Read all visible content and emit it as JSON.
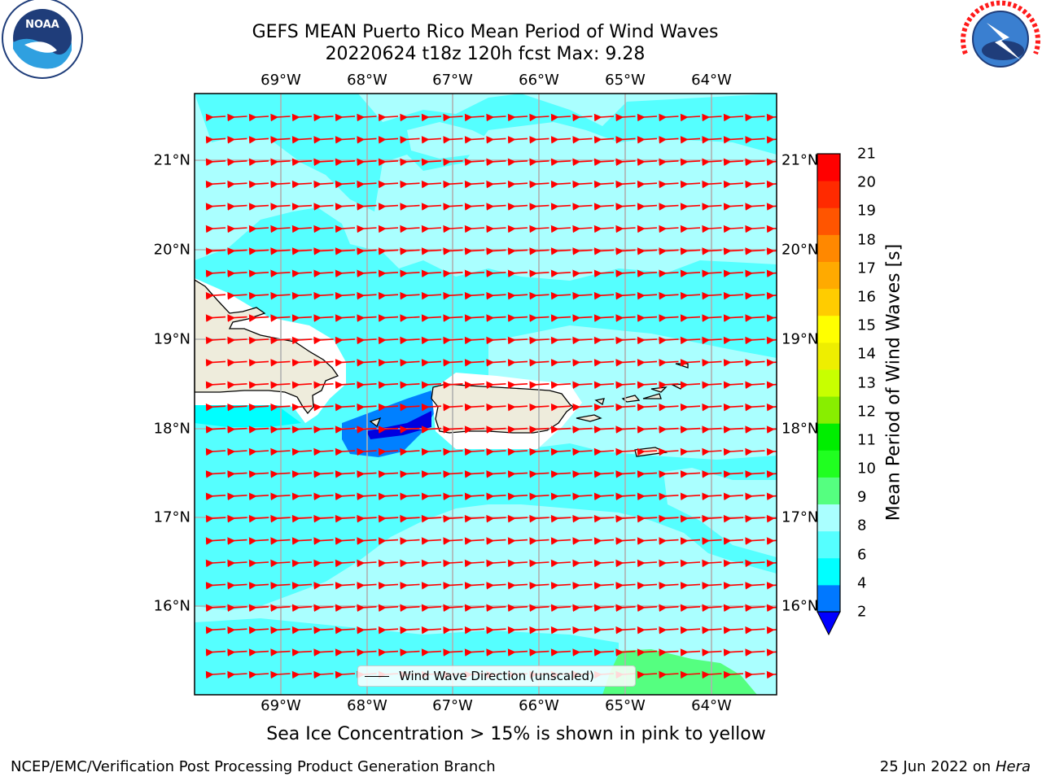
{
  "header": {
    "title_line1": "GEFS MEAN Puerto Rico Mean Period of Wind Waves",
    "title_line2": "20220624 t18z 120h fcst   Max: 9.28"
  },
  "logos": {
    "left": "noaa-logo",
    "right": "nws-logo"
  },
  "map": {
    "lon_labels": [
      "69°W",
      "68°W",
      "67°W",
      "66°W",
      "65°W",
      "64°W"
    ],
    "lat_labels": [
      "21°N",
      "20°N",
      "19°N",
      "18°N",
      "17°N",
      "16°N"
    ],
    "legend_label": "Wind Wave Direction (unscaled)",
    "arrow_color": "#ff0000",
    "land_color": "#eeecdc"
  },
  "colorbar": {
    "title": "Mean Period of Wind Waves [s]",
    "ticks": [
      "2",
      "4",
      "6",
      "8",
      "9",
      "10",
      "11",
      "12",
      "13",
      "14",
      "15",
      "16",
      "17",
      "18",
      "19",
      "20",
      "21"
    ],
    "colors": [
      "#0000ff",
      "#0078ff",
      "#00ffff",
      "#55ffff",
      "#aaffff",
      "#55ff80",
      "#20ff20",
      "#00ee00",
      "#88ee00",
      "#c8ff00",
      "#eeee00",
      "#ffff00",
      "#ffcc00",
      "#ffaa00",
      "#ff8800",
      "#ff5500",
      "#ff2a00",
      "#ff0000"
    ]
  },
  "footer": {
    "note": "Sea Ice Concentration > 15% is shown in pink to yellow",
    "left": "NCEP/EMC/Verification Post Processing Product Generation Branch",
    "right_date": "25 Jun 2022 on",
    "right_host": "Hera"
  }
}
